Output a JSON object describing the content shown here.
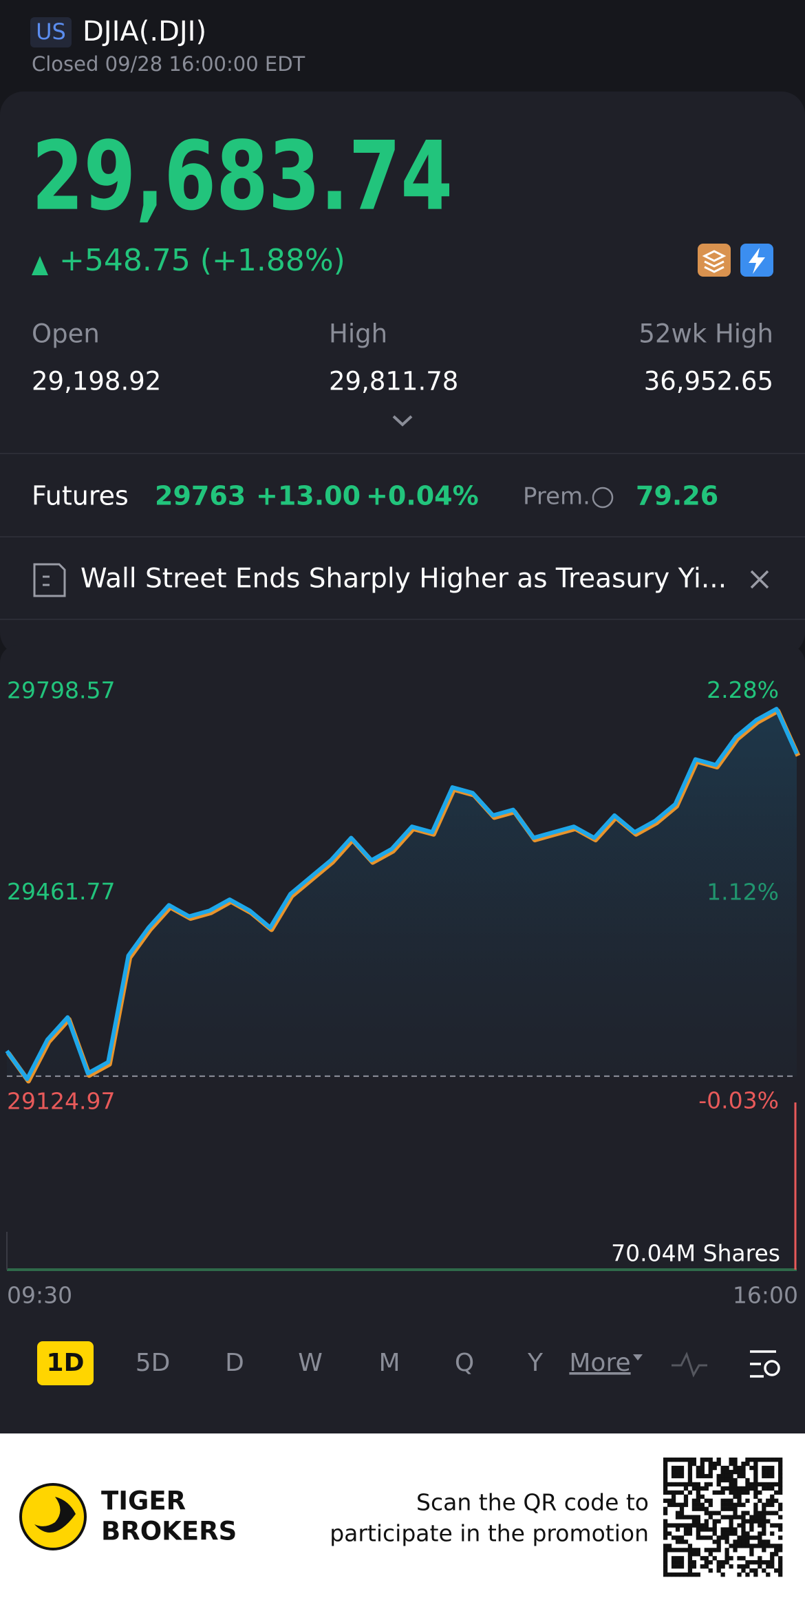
{
  "header": {
    "market": "US",
    "symbol": "DJIA(.DJI)",
    "status": "Closed 09/28 16:00:00 EDT"
  },
  "quote": {
    "price": "29,683.74",
    "change": "+548.75 (+1.88%)"
  },
  "stats": [
    {
      "label": "Open",
      "value": "29,198.92"
    },
    {
      "label": "High",
      "value": "29,811.78"
    },
    {
      "label": "52wk High",
      "value": "36,952.65"
    }
  ],
  "futures": {
    "label": "Futures",
    "price": "29763",
    "change": "+13.00",
    "change_pct": "+0.04%",
    "premium_label": "Prem.",
    "premium": "79.26"
  },
  "news": {
    "headline": "Wall Street Ends Sharply Higher as Treasury Yi..."
  },
  "chart_data": {
    "type": "line",
    "categories": [
      "09:30",
      null,
      null,
      null,
      null,
      null,
      null,
      null,
      null,
      null,
      null,
      null,
      null,
      null,
      null,
      null,
      null,
      null,
      null,
      null,
      null,
      null,
      null,
      null,
      null,
      null,
      null,
      null,
      null,
      null,
      null,
      null,
      null,
      null,
      null,
      null,
      null,
      null,
      null,
      "16:00"
    ],
    "values": [
      29180,
      29130,
      29200,
      29240,
      29140,
      29160,
      29350,
      29400,
      29440,
      29420,
      29430,
      29450,
      29430,
      29400,
      29460,
      29490,
      29520,
      29560,
      29520,
      29540,
      29580,
      29570,
      29650,
      29640,
      29600,
      29610,
      29560,
      29570,
      29580,
      29560,
      29600,
      29570,
      29590,
      29620,
      29700,
      29690,
      29740,
      29770,
      29790,
      29710
    ],
    "color": "#1ea7e9",
    "ylim": [
      29066,
      29876
    ],
    "yticks": [
      29798.57,
      29461.77,
      29124.97
    ],
    "y2lim": [
      -0.237,
      2.543
    ],
    "y2ticks": [
      {
        "value": 2.28,
        "label": "2.28%"
      },
      {
        "value": 1.12,
        "label": "1.12%"
      },
      {
        "value": -0.03,
        "label": "-0.03%"
      }
    ],
    "volume_label": "70.04M Shares"
  },
  "periods": [
    "1D",
    "5D",
    "D",
    "W",
    "M",
    "Q",
    "Y",
    "More"
  ],
  "footer": {
    "brand": [
      "TIGER",
      "BROKERS"
    ],
    "promo": [
      "Scan the QR code to",
      "participate in the promotion"
    ]
  }
}
